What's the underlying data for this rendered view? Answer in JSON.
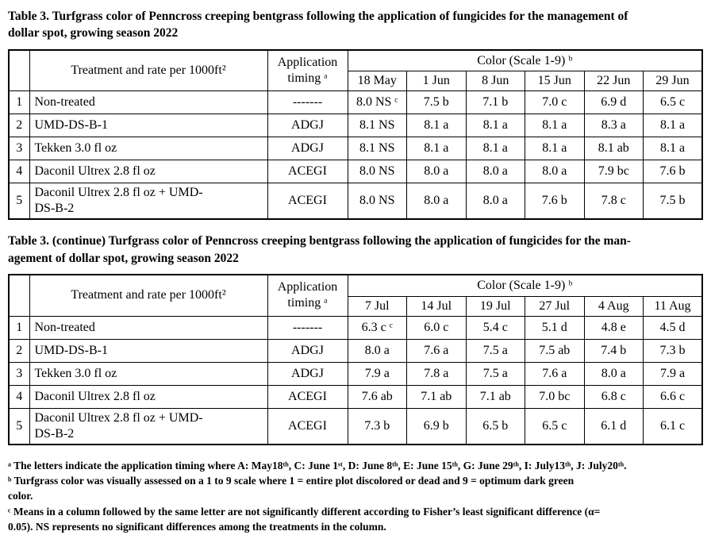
{
  "table1": {
    "caption": "Table 3. Turfgrass color of Penncross creeping bentgrass following the application of fungicides for the management of\ndollar spot, growing season 2022",
    "headers": {
      "treatment": "Treatment and rate per 1000ft²",
      "timing": "Application timing ᵃ",
      "color": "Color (Scale 1-9) ᵇ"
    },
    "dates": [
      "18 May",
      "1 Jun",
      "8 Jun",
      "15 Jun",
      "22 Jun",
      "29 Jun"
    ],
    "rows": [
      {
        "num": "1",
        "treatment": "Non-treated",
        "timing": "-------",
        "values": [
          "8.0 NS ᶜ",
          "7.5 b",
          "7.1 b",
          "7.0 c",
          "6.9 d",
          "6.5 c"
        ]
      },
      {
        "num": "2",
        "treatment": "UMD-DS-B-1",
        "timing": "ADGJ",
        "values": [
          "8.1 NS",
          "8.1 a",
          "8.1 a",
          "8.1 a",
          "8.3 a",
          "8.1 a"
        ]
      },
      {
        "num": "3",
        "treatment": "Tekken 3.0 fl oz",
        "timing": "ADGJ",
        "values": [
          "8.1 NS",
          "8.1 a",
          "8.1 a",
          "8.1 a",
          "8.1 ab",
          "8.1 a"
        ]
      },
      {
        "num": "4",
        "treatment": "Daconil Ultrex 2.8 fl oz",
        "timing": "ACEGI",
        "values": [
          "8.0 NS",
          "8.0 a",
          "8.0 a",
          "8.0 a",
          "7.9 bc",
          "7.6 b"
        ]
      },
      {
        "num": "5",
        "treatment": "Daconil Ultrex 2.8 fl oz + UMD-\nDS-B-2",
        "timing": "ACEGI",
        "values": [
          "8.0 NS",
          "8.0 a",
          "8.0 a",
          "7.6 b",
          "7.8 c",
          "7.5 b"
        ]
      }
    ]
  },
  "table2": {
    "caption": "Table 3. (continue) Turfgrass color of Penncross creeping bentgrass following the application of fungicides for the man-\nagement of dollar spot, growing season 2022",
    "headers": {
      "treatment": "Treatment and rate per 1000ft²",
      "timing": "Application timing ᵃ",
      "color": "Color (Scale 1-9) ᵇ"
    },
    "dates": [
      "7 Jul",
      "14 Jul",
      "19 Jul",
      "27 Jul",
      "4 Aug",
      "11 Aug"
    ],
    "rows": [
      {
        "num": "1",
        "treatment": "Non-treated",
        "timing": "-------",
        "values": [
          "6.3 c ᶜ",
          "6.0 c",
          "5.4 c",
          "5.1 d",
          "4.8 e",
          "4.5 d"
        ]
      },
      {
        "num": "2",
        "treatment": "UMD-DS-B-1",
        "timing": "ADGJ",
        "values": [
          "8.0 a",
          "7.6 a",
          "7.5 a",
          "7.5 ab",
          "7.4 b",
          "7.3 b"
        ]
      },
      {
        "num": "3",
        "treatment": "Tekken 3.0 fl oz",
        "timing": "ADGJ",
        "values": [
          "7.9 a",
          "7.8 a",
          "7.5 a",
          "7.6 a",
          "8.0 a",
          "7.9 a"
        ]
      },
      {
        "num": "4",
        "treatment": "Daconil Ultrex 2.8 fl oz",
        "timing": "ACEGI",
        "values": [
          "7.6 ab",
          "7.1 ab",
          "7.1 ab",
          "7.0 bc",
          "6.8 c",
          "6.6 c"
        ]
      },
      {
        "num": "5",
        "treatment": "Daconil Ultrex 2.8 fl oz + UMD-\nDS-B-2",
        "timing": "ACEGI",
        "values": [
          "7.3 b",
          "6.9 b",
          "6.5 b",
          "6.5 c",
          "6.1 d",
          "6.1 c"
        ]
      }
    ]
  },
  "footnotes": [
    "ᵃ The letters indicate the application timing where A: May18ᵗʰ, C: June 1ˢᵗ, D: June 8ᵗʰ, E: June 15ᵗʰ, G: June 29ᵗʰ, I: July13ᵗʰ, J: July20ᵗʰ.",
    "ᵇ Turfgrass color was visually assessed on a 1 to 9 scale where 1 = entire plot discolored or dead and 9 = optimum dark green\ncolor.",
    "ᶜ Means in a column followed by the same letter are not significantly different according to Fisher’s least significant difference (α=\n0.05). NS represents no significant differences among the treatments in the column."
  ]
}
